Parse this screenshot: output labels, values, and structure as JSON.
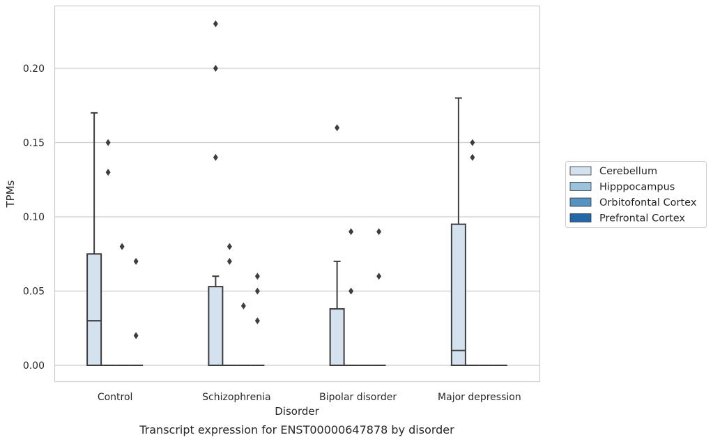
{
  "chart_data": {
    "type": "box",
    "title": "",
    "caption": "Transcript expression for ENST00000647878 by disorder",
    "xlabel": "Disorder",
    "ylabel": "TPMs",
    "ylim": [
      -0.011,
      0.242
    ],
    "yticks": [
      "0.00",
      "0.05",
      "0.10",
      "0.15",
      "0.20"
    ],
    "categories": [
      "Control",
      "Schizophrenia",
      "Bipolar disorder",
      "Major depression"
    ],
    "grid": true,
    "legend_position": "right",
    "colors": {
      "Cerebellum": "#d4e2ef",
      "Hipppocampus": "#9cc3dc",
      "Orbitofontal Cortex": "#5493c3",
      "Prefrontal Cortex": "#2368a9"
    },
    "series": [
      {
        "name": "Cerebellum",
        "boxes": [
          {
            "q1": 0.0,
            "median": 0.03,
            "q3": 0.075,
            "whislo": 0.0,
            "whishi": 0.17,
            "fliers": []
          },
          {
            "q1": 0.0,
            "median": 0.0,
            "q3": 0.053,
            "whislo": 0.0,
            "whishi": 0.06,
            "fliers": [
              0.14,
              0.2,
              0.23
            ]
          },
          {
            "q1": 0.0,
            "median": 0.0,
            "q3": 0.038,
            "whislo": 0.0,
            "whishi": 0.07,
            "fliers": [
              0.16
            ]
          },
          {
            "q1": 0.0,
            "median": 0.01,
            "q3": 0.095,
            "whislo": 0.0,
            "whishi": 0.18,
            "fliers": []
          }
        ]
      },
      {
        "name": "Hipppocampus",
        "boxes": [
          {
            "q1": 0.0,
            "median": 0.0,
            "q3": 0.0,
            "whislo": 0.0,
            "whishi": 0.0,
            "fliers": [
              0.13,
              0.15
            ]
          },
          {
            "q1": 0.0,
            "median": 0.0,
            "q3": 0.0,
            "whislo": 0.0,
            "whishi": 0.0,
            "fliers": [
              0.07,
              0.08
            ]
          },
          {
            "q1": 0.0,
            "median": 0.0,
            "q3": 0.0,
            "whislo": 0.0,
            "whishi": 0.0,
            "fliers": [
              0.05,
              0.09
            ]
          },
          {
            "q1": 0.0,
            "median": 0.0,
            "q3": 0.0,
            "whislo": 0.0,
            "whishi": 0.0,
            "fliers": [
              0.14,
              0.15
            ]
          }
        ]
      },
      {
        "name": "Orbitofontal Cortex",
        "boxes": [
          {
            "q1": 0.0,
            "median": 0.0,
            "q3": 0.0,
            "whislo": 0.0,
            "whishi": 0.0,
            "fliers": [
              0.08
            ]
          },
          {
            "q1": 0.0,
            "median": 0.0,
            "q3": 0.0,
            "whislo": 0.0,
            "whishi": 0.0,
            "fliers": [
              0.04
            ]
          },
          {
            "q1": 0.0,
            "median": 0.0,
            "q3": 0.0,
            "whislo": 0.0,
            "whishi": 0.0,
            "fliers": []
          },
          {
            "q1": 0.0,
            "median": 0.0,
            "q3": 0.0,
            "whislo": 0.0,
            "whishi": 0.0,
            "fliers": []
          }
        ]
      },
      {
        "name": "Prefrontal Cortex",
        "boxes": [
          {
            "q1": 0.0,
            "median": 0.0,
            "q3": 0.0,
            "whislo": 0.0,
            "whishi": 0.0,
            "fliers": [
              0.02,
              0.07
            ]
          },
          {
            "q1": 0.0,
            "median": 0.0,
            "q3": 0.0,
            "whislo": 0.0,
            "whishi": 0.0,
            "fliers": [
              0.03,
              0.05,
              0.06
            ]
          },
          {
            "q1": 0.0,
            "median": 0.0,
            "q3": 0.0,
            "whislo": 0.0,
            "whishi": 0.0,
            "fliers": [
              0.06,
              0.09
            ]
          },
          {
            "q1": 0.0,
            "median": 0.0,
            "q3": 0.0,
            "whislo": 0.0,
            "whishi": 0.0,
            "fliers": []
          }
        ]
      }
    ]
  }
}
